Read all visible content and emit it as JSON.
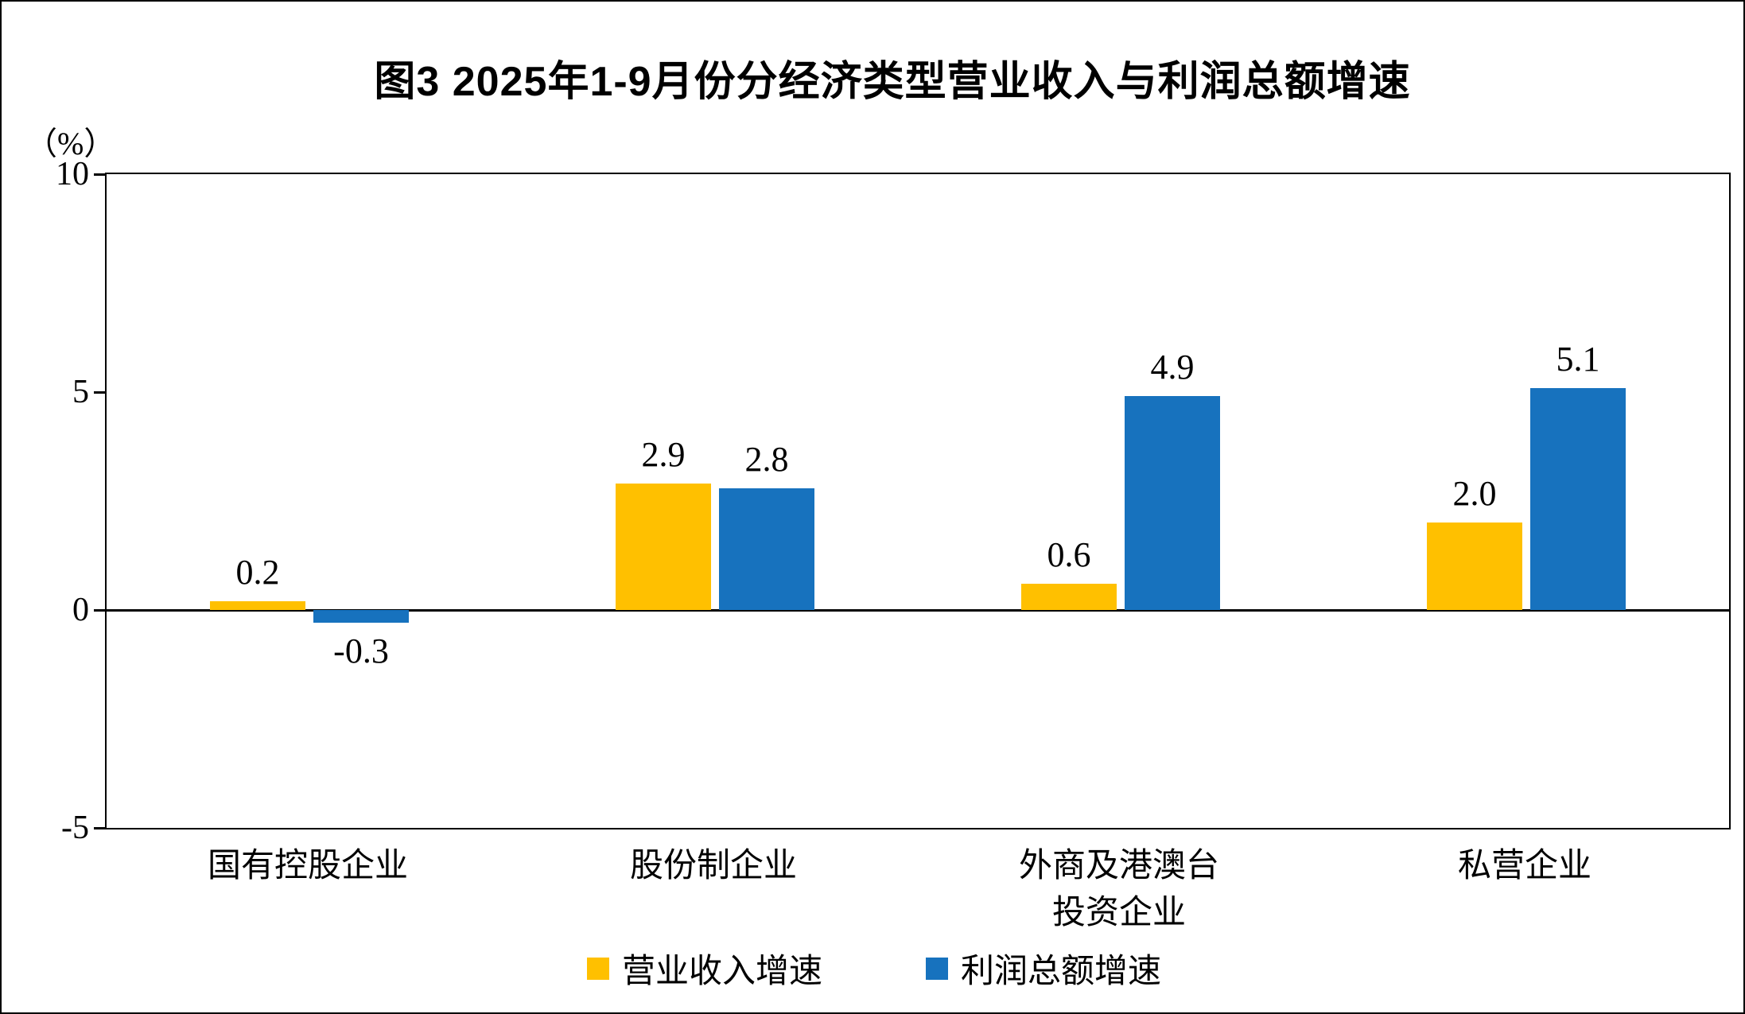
{
  "title": "图3  2025年1-9月份分经济类型营业收入与利润总额增速",
  "y_axis_unit": "（%）",
  "chart_data": {
    "type": "bar",
    "categories": [
      "国有控股企业",
      "股份制企业",
      "外商及港澳台\n投资企业",
      "私营企业"
    ],
    "series": [
      {
        "name": "营业收入增速",
        "color": "#FFC000",
        "values": [
          0.2,
          2.9,
          0.6,
          2.0
        ],
        "value_labels": [
          "0.2",
          "2.9",
          "0.6",
          "2.0"
        ]
      },
      {
        "name": "利润总额增速",
        "color": "#1772BE",
        "values": [
          -0.3,
          2.8,
          4.9,
          5.1
        ],
        "value_labels": [
          "-0.3",
          "2.8",
          "4.9",
          "5.1"
        ]
      }
    ],
    "ylim": [
      -5,
      10
    ],
    "yticks": [
      10,
      5,
      0,
      -5
    ],
    "grid": false,
    "legend_position": "bottom",
    "axis_color": "#000000"
  }
}
